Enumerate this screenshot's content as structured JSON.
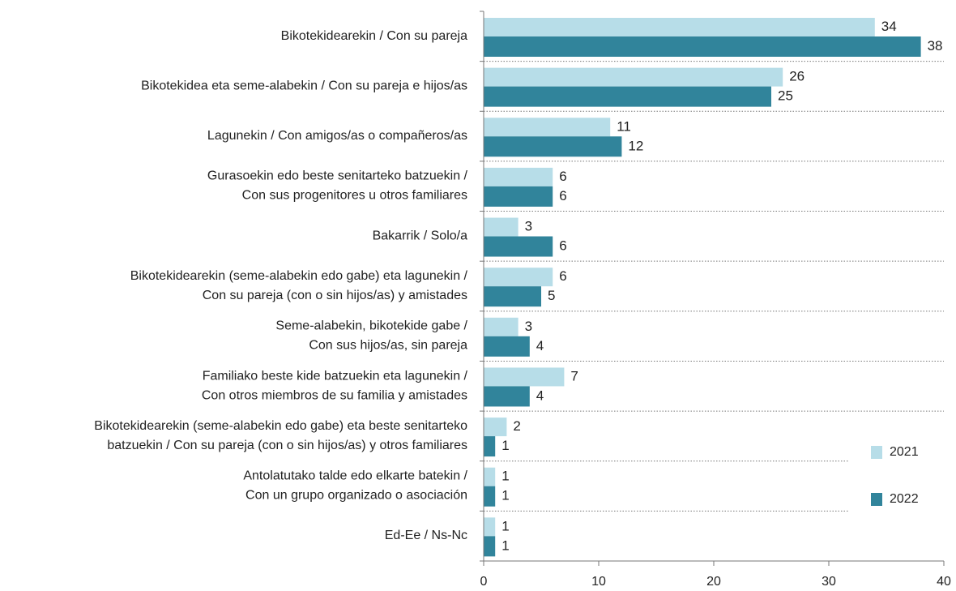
{
  "chart_data": {
    "type": "bar",
    "orientation": "horizontal",
    "categories": [
      "Bikotekidearekin / Con su pareja",
      "Bikotekidea eta seme-alabekin / Con su pareja e hijos/as",
      "Lagunekin / Con amigos/as o compañeros/as",
      "Gurasoekin edo beste senitarteko batzuekin /\nCon sus progenitores u otros familiares",
      "Bakarrik / Solo/a",
      "Bikotekidearekin (seme-alabekin edo gabe) eta lagunekin /\nCon su pareja (con o sin hijos/as) y amistades",
      "Seme-alabekin, bikotekide gabe /\nCon sus hijos/as, sin pareja",
      "Familiako beste kide batzuekin eta lagunekin /\nCon otros miembros de su familia y amistades",
      "Bikotekidearekin (seme-alabekin edo gabe) eta beste senitarteko\nbatzuekin / Con su pareja (con o sin hijos/as) y otros familiares",
      "Antolatutako talde edo elkarte batekin /\nCon un grupo organizado o asociación",
      "Ed-Ee / Ns-Nc"
    ],
    "series": [
      {
        "name": "2021",
        "color": "#b7dde8",
        "values": [
          34,
          26,
          11,
          6,
          3,
          6,
          3,
          7,
          2,
          1,
          1
        ]
      },
      {
        "name": "2022",
        "color": "#31849b",
        "values": [
          38,
          25,
          12,
          6,
          6,
          5,
          4,
          4,
          1,
          1,
          1
        ]
      }
    ],
    "xlim": [
      0,
      40
    ],
    "xticks": [
      0,
      10,
      20,
      30,
      40
    ],
    "legend": "lower right",
    "data_labels": true
  }
}
